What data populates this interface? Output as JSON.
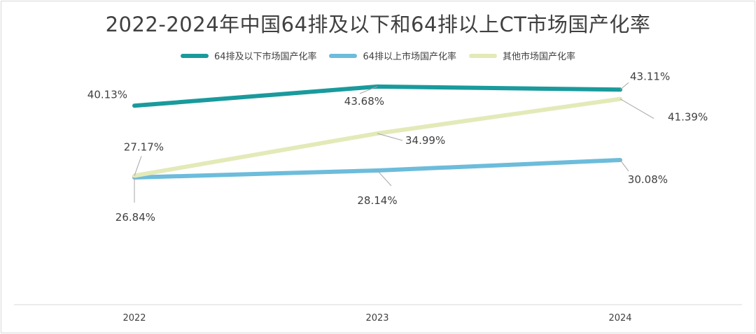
{
  "chart_data": {
    "type": "line",
    "title": "2022-2024年中国64排及以下和64排以上CT市场国产化率",
    "categories": [
      "2022",
      "2023",
      "2024"
    ],
    "series": [
      {
        "name": "64排及以下市场国产化率",
        "color": "#1a9a9c",
        "values": [
          40.13,
          43.68,
          43.11
        ],
        "labels": [
          "40.13%",
          "43.68%",
          "43.11%"
        ]
      },
      {
        "name": "64排以上市场国产化率",
        "color": "#6dbcdb",
        "values": [
          26.84,
          28.14,
          30.08
        ],
        "labels": [
          "26.84%",
          "28.14%",
          "30.08%"
        ]
      },
      {
        "name": "其他市场国产化率",
        "color": "#e3eab8",
        "values": [
          27.17,
          34.99,
          41.39
        ],
        "labels": [
          "27.17%",
          "34.99%",
          "41.39%"
        ]
      }
    ],
    "ylim": [
      0,
      50
    ],
    "grid": false,
    "legend": "top-center"
  }
}
